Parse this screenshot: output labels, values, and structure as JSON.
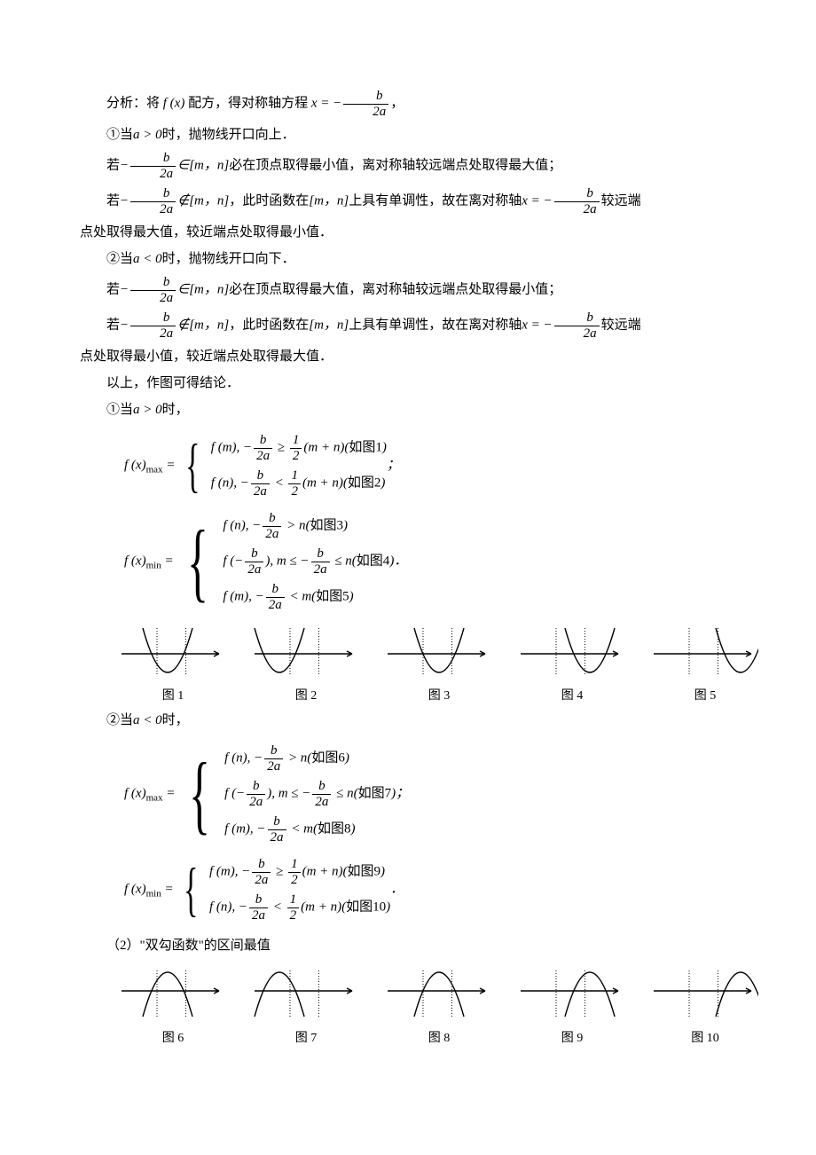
{
  "intro": {
    "analysis_pre": "分析：将",
    "f_of_x": "f (x)",
    "analysis_mid": "配方，得对称轴方程",
    "symm_eq_lhs": "x = −",
    "symm_num": "b",
    "symm_den": "2a",
    "punct": "，"
  },
  "case1": {
    "head_pre": "①当",
    "head_cond": "a > 0",
    "head_post": "时，抛物线开口向上．",
    "r1_pre": "若",
    "r1_neg": "−",
    "r1_num": "b",
    "r1_den": "2a",
    "r1_in": "∈[m，n]",
    "r1_post": "必在顶点取得最小值，离对称轴较远端点处取得最大值；",
    "r2_pre": "若",
    "r2_neg": "−",
    "r2_num": "b",
    "r2_den": "2a",
    "r2_nin": "∉[m，n]",
    "r2_mid1": "，此时函数在",
    "r2_mn": "[m，n]",
    "r2_mid2": "上具有单调性，故在离对称轴",
    "r2_xeq": "x = −",
    "r2_num2": "b",
    "r2_den2": "2a",
    "r2_end": "较远端",
    "r2_cont": "点处取得最大值，较近端点处取得最小值．"
  },
  "case2": {
    "head_pre": "②当",
    "head_cond": "a < 0",
    "head_post": "时，抛物线开口向下．",
    "r1_pre": "若",
    "r1_neg": "−",
    "r1_num": "b",
    "r1_den": "2a",
    "r1_in": "∈[m，n]",
    "r1_post": "必在顶点取得最大值，离对称轴较远端点处取得最小值；",
    "r2_pre": "若",
    "r2_neg": "−",
    "r2_num": "b",
    "r2_den": "2a",
    "r2_nin": "∉[m，n]",
    "r2_mid1": "，此时函数在",
    "r2_mn": "[m，n]",
    "r2_mid2": "上具有单调性，故在离对称轴",
    "r2_xeq": "x = −",
    "r2_num2": "b",
    "r2_den2": "2a",
    "r2_end": "较远端",
    "r2_cont": "点处取得最小值，较近端点处取得最大值．"
  },
  "summary": "以上，作图可得结论．",
  "when_a_pos": {
    "pre": "①当",
    "cond": "a > 0",
    "post": "时，"
  },
  "fmax1": {
    "lhs": "f (x)",
    "sub": "max",
    "eq": " = ",
    "c1": "f (m), −",
    "frac_num": "b",
    "frac_den": "2a",
    "ge": " ≥ ",
    "half_num": "1",
    "half_den": "2",
    "mn": "(m + n)(",
    "fig1": "如图1",
    "rp": ")",
    "c2": "f (n), −",
    "lt": " < ",
    "fig2": "如图2",
    "end": "；"
  },
  "fmin1": {
    "lhs": "f (x)",
    "sub": "min",
    "eq": " = ",
    "c1": "f (n), −",
    "frac_num": "b",
    "frac_den": "2a",
    "gt": " > n(",
    "fig3": "如图3",
    "rp": ")",
    "c2a": "f (−",
    "c2b": "),  m ≤ −",
    "c2c": " ≤ n(",
    "fig4": "如图4",
    "c3": "f (m), −",
    "ltm": " < m(",
    "fig5": "如图5",
    "end": "．"
  },
  "when_a_neg": {
    "pre": "②当",
    "cond": "a < 0",
    "post": "时，"
  },
  "fmax2": {
    "lhs": "f (x)",
    "sub": "max",
    "eq": " = ",
    "c1": "f (n), −",
    "frac_num": "b",
    "frac_den": "2a",
    "gt": " > n(",
    "fig6": "如图6",
    "rp": ")",
    "c2a": "f (−",
    "c2b": "),  m ≤ −",
    "c2c": " ≤ n(",
    "fig7": "如图7",
    "c3": "f (m), −",
    "ltm": " < m(",
    "fig8": "如图8",
    "end": "；"
  },
  "fmin2": {
    "lhs": "f (x)",
    "sub": "min",
    "eq": " = ",
    "c1": "f (m), −",
    "frac_num": "b",
    "frac_den": "2a",
    "ge": " ≥ ",
    "half_num": "1",
    "half_den": "2",
    "mn": "(m + n)(",
    "fig9": "如图9",
    "rp": ")",
    "c2": "f (n), −",
    "lt": " < ",
    "fig10": "如图10",
    "end": "．"
  },
  "section2": "（2）\"双勾函数\"的区间最值",
  "figrow1": {
    "orientation": "up",
    "labels": [
      "图 1",
      "图 2",
      "图 3",
      "图 4",
      "图 5"
    ],
    "shifts": [
      -6,
      -30,
      0,
      20,
      40
    ],
    "stroke": "#000000",
    "stroke_width": 1.4,
    "dash": "1,2",
    "width": 120,
    "height": 60,
    "spacing": 30
  },
  "figrow2": {
    "orientation": "down",
    "labels": [
      "图 6",
      "图 7",
      "图 8",
      "图 9",
      "图 10"
    ],
    "shifts": [
      -6,
      -30,
      0,
      20,
      40
    ],
    "stroke": "#000000",
    "stroke_width": 1.4,
    "dash": "1,2",
    "width": 120,
    "height": 60,
    "spacing": 30
  }
}
